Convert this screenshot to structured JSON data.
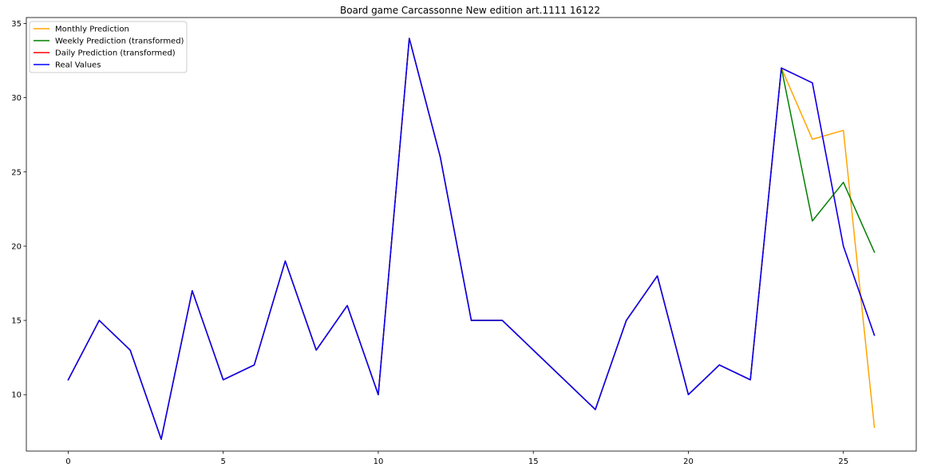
{
  "chart_data": {
    "type": "line",
    "title": "Board game Carcassonne New edition art.1111 16122",
    "xlim": [
      -1.35,
      27.35
    ],
    "ylim": [
      6.2,
      35.4
    ],
    "xticks": [
      0,
      5,
      10,
      15,
      20,
      25
    ],
    "yticks": [
      10,
      15,
      20,
      25,
      30,
      35
    ],
    "grid": false,
    "legend_position": "top-left",
    "series": [
      {
        "name": "Monthly Prediction",
        "color": "#ffa500",
        "x": [
          0,
          1,
          2,
          3,
          4,
          5,
          6,
          7,
          8,
          9,
          10,
          11,
          12,
          13,
          14,
          15,
          16,
          17,
          18,
          19,
          20,
          21,
          22,
          23,
          24,
          25,
          26
        ],
        "y": [
          11,
          15,
          13,
          7,
          17,
          11,
          12,
          19,
          13,
          16,
          10,
          34,
          26,
          15,
          15,
          13,
          11,
          9,
          15,
          18,
          10,
          12,
          11,
          32,
          27.2,
          27.8,
          7.8
        ]
      },
      {
        "name": "Weekly Prediction (transformed)",
        "color": "#008000",
        "x": [
          0,
          1,
          2,
          3,
          4,
          5,
          6,
          7,
          8,
          9,
          10,
          11,
          12,
          13,
          14,
          15,
          16,
          17,
          18,
          19,
          20,
          21,
          22,
          23,
          24,
          25,
          26
        ],
        "y": [
          11,
          15,
          13,
          7,
          17,
          11,
          12,
          19,
          13,
          16,
          10,
          34,
          26,
          15,
          15,
          13,
          11,
          9,
          15,
          18,
          10,
          12,
          11,
          32,
          21.7,
          24.3,
          19.6
        ]
      },
      {
        "name": "Daily Prediction (transformed)",
        "color": "#ff0000",
        "x": [
          0,
          1,
          2,
          3,
          4,
          5,
          6,
          7,
          8,
          9,
          10,
          11,
          12,
          13,
          14,
          15,
          16,
          17,
          18,
          19,
          20,
          21,
          22,
          23,
          24,
          25,
          26
        ],
        "y": [
          11,
          15,
          13,
          7,
          17,
          11,
          12,
          19,
          13,
          16,
          10,
          34,
          26,
          15,
          15,
          13,
          11,
          9,
          15,
          18,
          10,
          12,
          11,
          32,
          31,
          20,
          14
        ]
      },
      {
        "name": "Real Values",
        "color": "#0000ff",
        "x": [
          0,
          1,
          2,
          3,
          4,
          5,
          6,
          7,
          8,
          9,
          10,
          11,
          12,
          13,
          14,
          15,
          16,
          17,
          18,
          19,
          20,
          21,
          22,
          23,
          24,
          25,
          26
        ],
        "y": [
          11,
          15,
          13,
          7,
          17,
          11,
          12,
          19,
          13,
          16,
          10,
          34,
          26,
          15,
          15,
          13,
          11,
          9,
          15,
          18,
          10,
          12,
          11,
          32,
          31,
          20,
          14
        ]
      }
    ]
  }
}
